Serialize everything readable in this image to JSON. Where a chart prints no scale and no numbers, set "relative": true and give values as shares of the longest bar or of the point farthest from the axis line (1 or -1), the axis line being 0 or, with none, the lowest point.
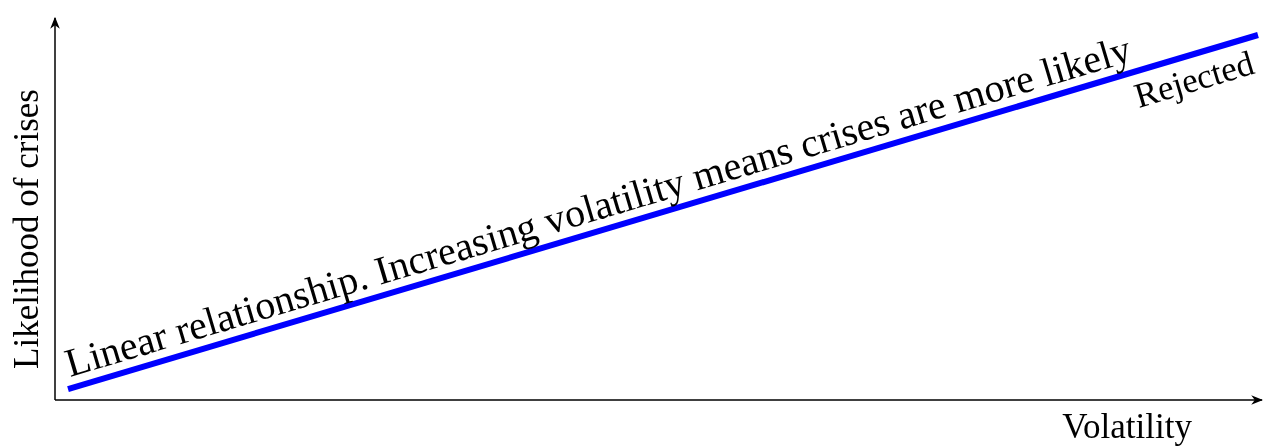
{
  "chart_data": {
    "type": "line",
    "relative": true,
    "categories": [
      null,
      null
    ],
    "series": [
      {
        "color": "#0000ff",
        "values": [
          0.03,
          1
        ]
      }
    ],
    "xlabel": "Volatility",
    "ylabel": "Likelihood of crises",
    "annotations": [
      "Linear relationship. Increasing volatility means crises are more likely",
      "Rejected"
    ]
  }
}
